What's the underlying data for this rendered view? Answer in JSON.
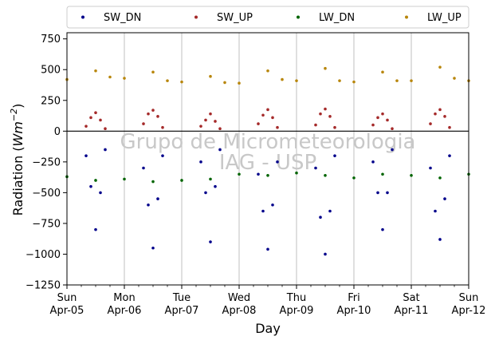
{
  "chart_data": {
    "type": "scatter",
    "ylabel_prefix": "Radiation (",
    "ylabel_math": "Wm",
    "ylabel_sup": "−2",
    "ylabel_suffix": ")",
    "xlabel": "Day",
    "ylim": [
      -1250,
      800
    ],
    "yticks": [
      750,
      500,
      250,
      0,
      -250,
      -500,
      -750,
      -1000,
      -1250
    ],
    "ytick_labels": [
      "750",
      "500",
      "250",
      "0",
      "−250",
      "−500",
      "−750",
      "−1000",
      "−1250"
    ],
    "xlim": [
      "2020-04-05",
      "2020-04-12"
    ],
    "x_ticks": [
      {
        "date": "2020-04-05",
        "day": "Sun",
        "date_label": "Apr-05"
      },
      {
        "date": "2020-04-06",
        "day": "Mon",
        "date_label": "Apr-06"
      },
      {
        "date": "2020-04-07",
        "day": "Tue",
        "date_label": "Apr-07"
      },
      {
        "date": "2020-04-08",
        "day": "Wed",
        "date_label": "Apr-08"
      },
      {
        "date": "2020-04-09",
        "day": "Thu",
        "date_label": "Apr-09"
      },
      {
        "date": "2020-04-10",
        "day": "Fri",
        "date_label": "Apr-10"
      },
      {
        "date": "2020-04-11",
        "day": "Sat",
        "date_label": "Apr-11"
      },
      {
        "date": "2020-04-12",
        "day": "Sun",
        "date_label": "Apr-12"
      }
    ],
    "grid": "vertical",
    "legend_position": "top",
    "zero_line": true,
    "watermark": [
      "Grupo de Micrometeorologia",
      "IAG - USP"
    ],
    "series": [
      {
        "name": "SW_DN",
        "color": "#00008b",
        "x": [
          "2020-04-05 08:00",
          "2020-04-05 10:00",
          "2020-04-05 12:00",
          "2020-04-05 14:00",
          "2020-04-05 16:00",
          "2020-04-06 08:00",
          "2020-04-06 10:00",
          "2020-04-06 12:00",
          "2020-04-06 14:00",
          "2020-04-06 16:00",
          "2020-04-07 08:00",
          "2020-04-07 10:00",
          "2020-04-07 12:00",
          "2020-04-07 14:00",
          "2020-04-07 16:00",
          "2020-04-08 08:00",
          "2020-04-08 10:00",
          "2020-04-08 12:00",
          "2020-04-08 14:00",
          "2020-04-08 16:00",
          "2020-04-09 08:00",
          "2020-04-09 10:00",
          "2020-04-09 12:00",
          "2020-04-09 14:00",
          "2020-04-09 16:00",
          "2020-04-10 08:00",
          "2020-04-10 10:00",
          "2020-04-10 12:00",
          "2020-04-10 14:00",
          "2020-04-10 16:00",
          "2020-04-11 08:00",
          "2020-04-11 10:00",
          "2020-04-11 12:00",
          "2020-04-11 14:00",
          "2020-04-11 16:00"
        ],
        "y": [
          -200,
          -450,
          -800,
          -500,
          -150,
          -300,
          -600,
          -950,
          -550,
          -200,
          -250,
          -500,
          -900,
          -450,
          -150,
          -350,
          -650,
          -960,
          -600,
          -250,
          -300,
          -700,
          -1000,
          -650,
          -200,
          -250,
          -500,
          -800,
          -500,
          -150,
          -300,
          -650,
          -880,
          -550,
          -200
        ]
      },
      {
        "name": "SW_UP",
        "color": "#a52a2a",
        "x": [
          "2020-04-05 08:00",
          "2020-04-05 10:00",
          "2020-04-05 12:00",
          "2020-04-05 14:00",
          "2020-04-05 16:00",
          "2020-04-06 08:00",
          "2020-04-06 10:00",
          "2020-04-06 12:00",
          "2020-04-06 14:00",
          "2020-04-06 16:00",
          "2020-04-07 08:00",
          "2020-04-07 10:00",
          "2020-04-07 12:00",
          "2020-04-07 14:00",
          "2020-04-07 16:00",
          "2020-04-08 08:00",
          "2020-04-08 10:00",
          "2020-04-08 12:00",
          "2020-04-08 14:00",
          "2020-04-08 16:00",
          "2020-04-09 08:00",
          "2020-04-09 10:00",
          "2020-04-09 12:00",
          "2020-04-09 14:00",
          "2020-04-09 16:00",
          "2020-04-10 08:00",
          "2020-04-10 10:00",
          "2020-04-10 12:00",
          "2020-04-10 14:00",
          "2020-04-10 16:00",
          "2020-04-11 08:00",
          "2020-04-11 10:00",
          "2020-04-11 12:00",
          "2020-04-11 14:00",
          "2020-04-11 16:00"
        ],
        "y": [
          40,
          110,
          150,
          90,
          20,
          60,
          140,
          170,
          120,
          30,
          40,
          90,
          140,
          80,
          20,
          60,
          130,
          175,
          110,
          30,
          50,
          140,
          180,
          120,
          30,
          50,
          110,
          140,
          90,
          20,
          60,
          140,
          175,
          120,
          30
        ]
      },
      {
        "name": "LW_DN",
        "color": "#006400",
        "x": [
          "2020-04-05 00:00",
          "2020-04-05 12:00",
          "2020-04-06 00:00",
          "2020-04-06 12:00",
          "2020-04-07 00:00",
          "2020-04-07 12:00",
          "2020-04-08 00:00",
          "2020-04-08 12:00",
          "2020-04-09 00:00",
          "2020-04-09 12:00",
          "2020-04-10 00:00",
          "2020-04-10 12:00",
          "2020-04-11 00:00",
          "2020-04-11 12:00",
          "2020-04-12 00:00"
        ],
        "y": [
          -370,
          -400,
          -390,
          -410,
          -400,
          -390,
          -350,
          -360,
          -340,
          -360,
          -380,
          -350,
          -360,
          -380,
          -350
        ]
      },
      {
        "name": "LW_UP",
        "color": "#b8860b",
        "x": [
          "2020-04-05 00:00",
          "2020-04-05 12:00",
          "2020-04-05 18:00",
          "2020-04-06 00:00",
          "2020-04-06 12:00",
          "2020-04-06 18:00",
          "2020-04-07 00:00",
          "2020-04-07 12:00",
          "2020-04-07 18:00",
          "2020-04-08 00:00",
          "2020-04-08 12:00",
          "2020-04-08 18:00",
          "2020-04-09 00:00",
          "2020-04-09 12:00",
          "2020-04-09 18:00",
          "2020-04-10 00:00",
          "2020-04-10 12:00",
          "2020-04-10 18:00",
          "2020-04-11 00:00",
          "2020-04-11 12:00",
          "2020-04-11 18:00",
          "2020-04-12 00:00"
        ],
        "y": [
          420,
          490,
          440,
          430,
          480,
          410,
          400,
          445,
          395,
          390,
          490,
          420,
          410,
          510,
          410,
          400,
          480,
          410,
          410,
          520,
          430,
          410
        ]
      }
    ]
  }
}
